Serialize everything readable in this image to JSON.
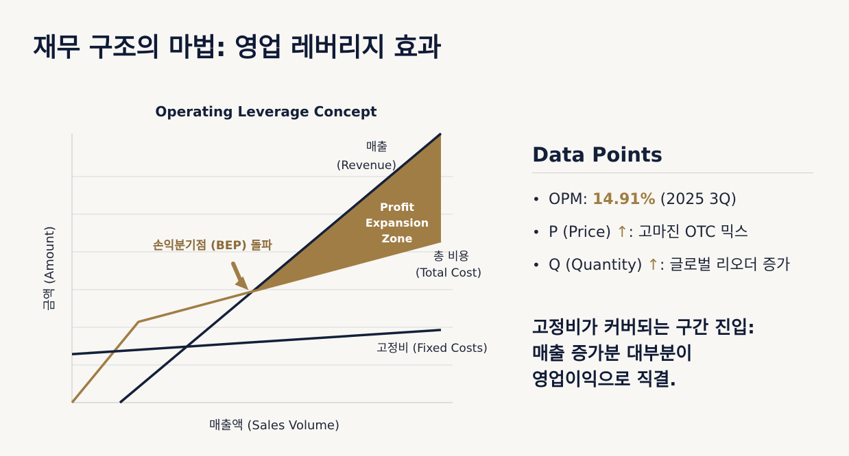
{
  "title": "재무 구조의 마법: 영업 레버리지 효과",
  "chart_data": {
    "type": "line",
    "title": "Operating Leverage Concept",
    "xlabel": "매출액 (Sales Volume)",
    "ylabel": "금액 (Amount)",
    "xlim": [
      0,
      100
    ],
    "ylim": [
      0,
      100
    ],
    "grid": true,
    "series": [
      {
        "name": "매출 (Revenue)",
        "color": "#14203a",
        "points": [
          [
            13,
            0
          ],
          [
            100,
            100
          ]
        ]
      },
      {
        "name": "총 비용 (Total Cost)",
        "color": "#a07d45",
        "points": [
          [
            0,
            0
          ],
          [
            18,
            30
          ],
          [
            100,
            60
          ]
        ]
      },
      {
        "name": "고정비 (Fixed Costs)",
        "color": "#14203a",
        "points": [
          [
            0,
            18
          ],
          [
            100,
            27
          ]
        ]
      }
    ],
    "labels": {
      "revenue_line1": "매출",
      "revenue_line2": "(Revenue)",
      "total_cost_line1": "총 비용",
      "total_cost_line2": "(Total Cost)",
      "fixed_costs": "고정비 (Fixed Costs)",
      "bep": "손익분기점 (BEP) 돌파",
      "profit_zone": [
        "Profit",
        "Expansion",
        "Zone"
      ]
    },
    "colors": {
      "navy": "#14203a",
      "gold": "#a07d45",
      "profit_fill": "#a07d45",
      "grid": "#d9d9d9"
    }
  },
  "data_points": {
    "heading": "Data Points",
    "items": [
      {
        "prefix": "OPM: ",
        "highlight": "14.91%",
        "suffix": " (2025 3Q)"
      },
      {
        "prefix": "P (Price) ",
        "arrow": "↑",
        "suffix": ": 고마진 OTC 믹스"
      },
      {
        "prefix": "Q (Quantity) ",
        "arrow": "↑",
        "suffix": ": 글로벌 리오더 증가"
      }
    ]
  },
  "summary": {
    "lines": [
      "고정비가 커버되는 구간 진입:",
      "매출 증가분 대부분이",
      "영업이익으로 직결."
    ]
  }
}
